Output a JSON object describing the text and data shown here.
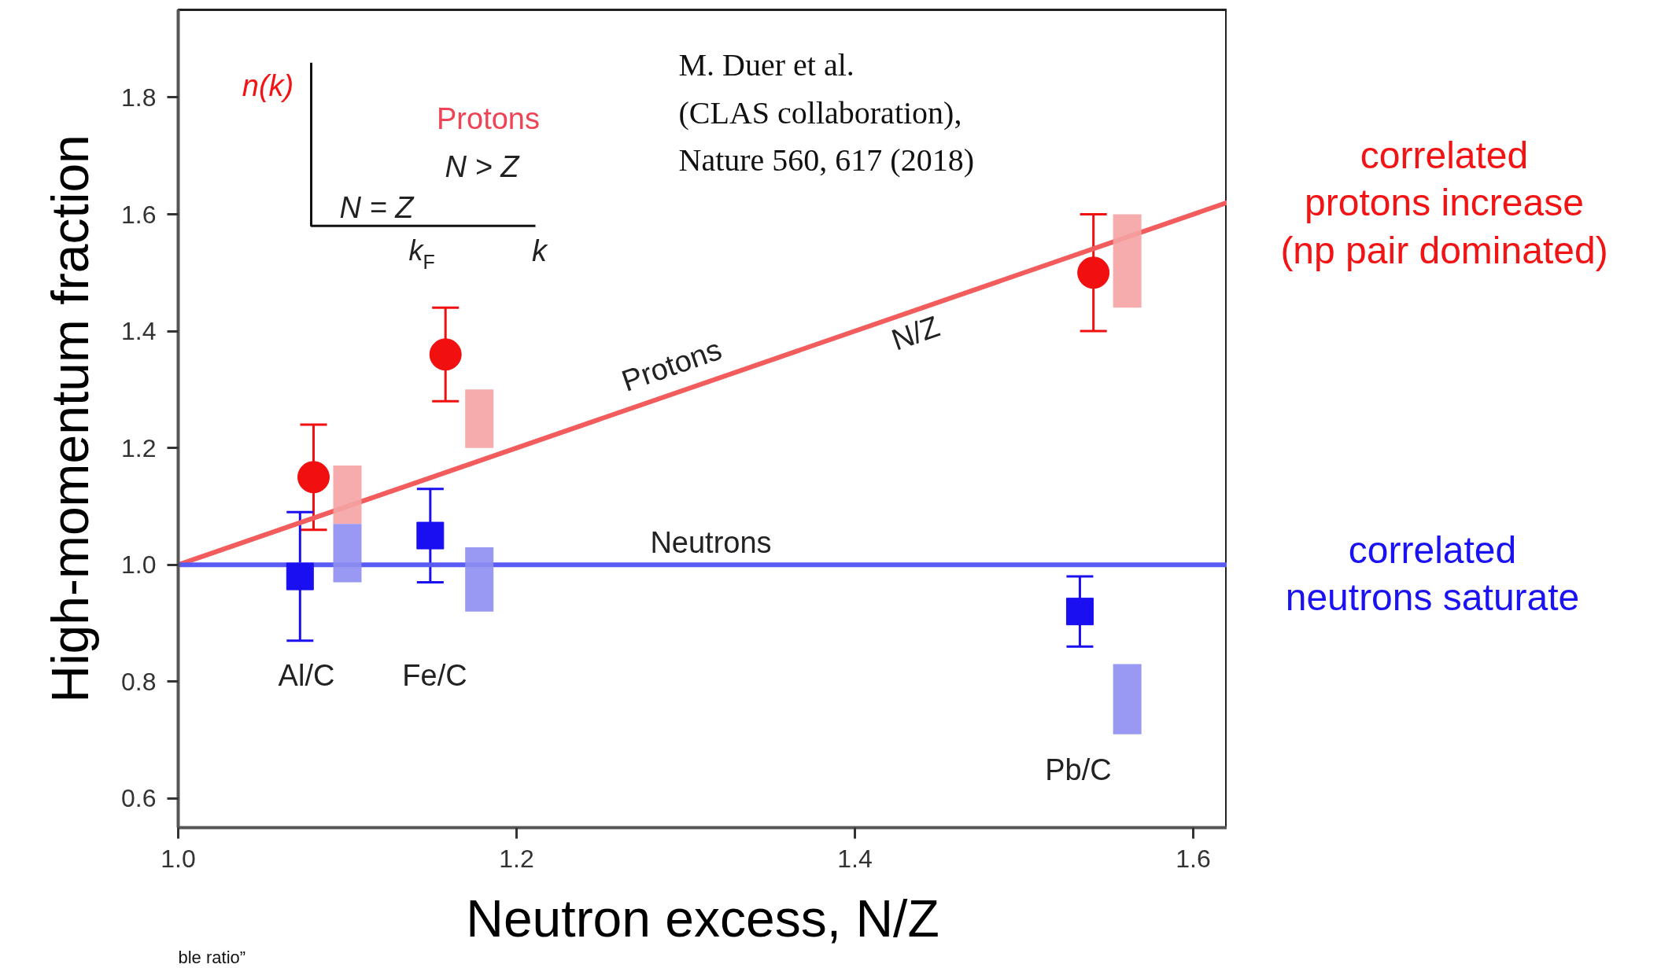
{
  "chart_data": {
    "type": "scatter",
    "xlabel": "Neutron excess, N/Z",
    "ylabel": "High-momentum fraction",
    "xlim": [
      1.0,
      1.62
    ],
    "ylim": [
      0.55,
      1.95
    ],
    "xticks": [
      {
        "value": 1.0,
        "label": "1.0"
      },
      {
        "value": 1.2,
        "label": "1.2"
      },
      {
        "value": 1.4,
        "label": "1.4"
      },
      {
        "value": 1.6,
        "label": "1.6"
      }
    ],
    "yticks": [
      {
        "value": 0.6,
        "label": "0.6"
      },
      {
        "value": 0.8,
        "label": "0.8"
      },
      {
        "value": 1.0,
        "label": "1.0"
      },
      {
        "value": 1.2,
        "label": "1.2"
      },
      {
        "value": 1.4,
        "label": "1.4"
      },
      {
        "value": 1.6,
        "label": "1.6"
      },
      {
        "value": 1.8,
        "label": "1.8"
      }
    ],
    "series": [
      {
        "type": "line",
        "color": "#f25c5c",
        "x": [
          1.0,
          1.62
        ],
        "values": [
          1.0,
          1.62
        ]
      },
      {
        "type": "line",
        "color": "#5a5af5",
        "x": [
          1.0,
          1.62
        ],
        "values": [
          1.0,
          1.0
        ]
      },
      {
        "type": "bar",
        "color": "#f5a3a3",
        "x": [
          1.1,
          1.178,
          1.561
        ],
        "base": [
          1.07,
          1.2,
          1.44
        ],
        "values": [
          0.1,
          0.1,
          0.16
        ]
      },
      {
        "type": "bar",
        "color": "#8e8ef2",
        "x": [
          1.1,
          1.178,
          1.561
        ],
        "base": [
          0.97,
          0.92,
          0.71
        ],
        "values": [
          0.1,
          0.11,
          0.12
        ]
      },
      {
        "type": "scatter",
        "marker": "circle",
        "color": "#f20f0f",
        "x": [
          1.08,
          1.158,
          1.541
        ],
        "values": [
          1.15,
          1.36,
          1.5
        ],
        "errors": [
          [
            1.06,
            1.24
          ],
          [
            1.28,
            1.44
          ],
          [
            1.4,
            1.6
          ]
        ]
      },
      {
        "marker": "square",
        "color": "#1a0ff0",
        "x": [
          1.072,
          1.149,
          1.533
        ],
        "values": [
          0.98,
          1.05,
          0.92
        ],
        "errors": [
          [
            0.87,
            1.09
          ],
          [
            0.97,
            1.13
          ],
          [
            0.86,
            0.98
          ]
        ]
      }
    ],
    "annotations": [
      "M. Duer et al.\n(CLAS collaboration),\nNature 560, 617 (2018)",
      "correlated\nprotons increase\n(np pair dominated)",
      "correlated\nneutrons saturate",
      "n(k)",
      "Protons",
      "N > Z",
      "N = Z",
      "k$_{F}$",
      "k",
      "ble ratio”",
      "Al/C",
      "Fe/C",
      "Pb/C",
      "Protons",
      "N/Z",
      "Neutrons"
    ]
  }
}
